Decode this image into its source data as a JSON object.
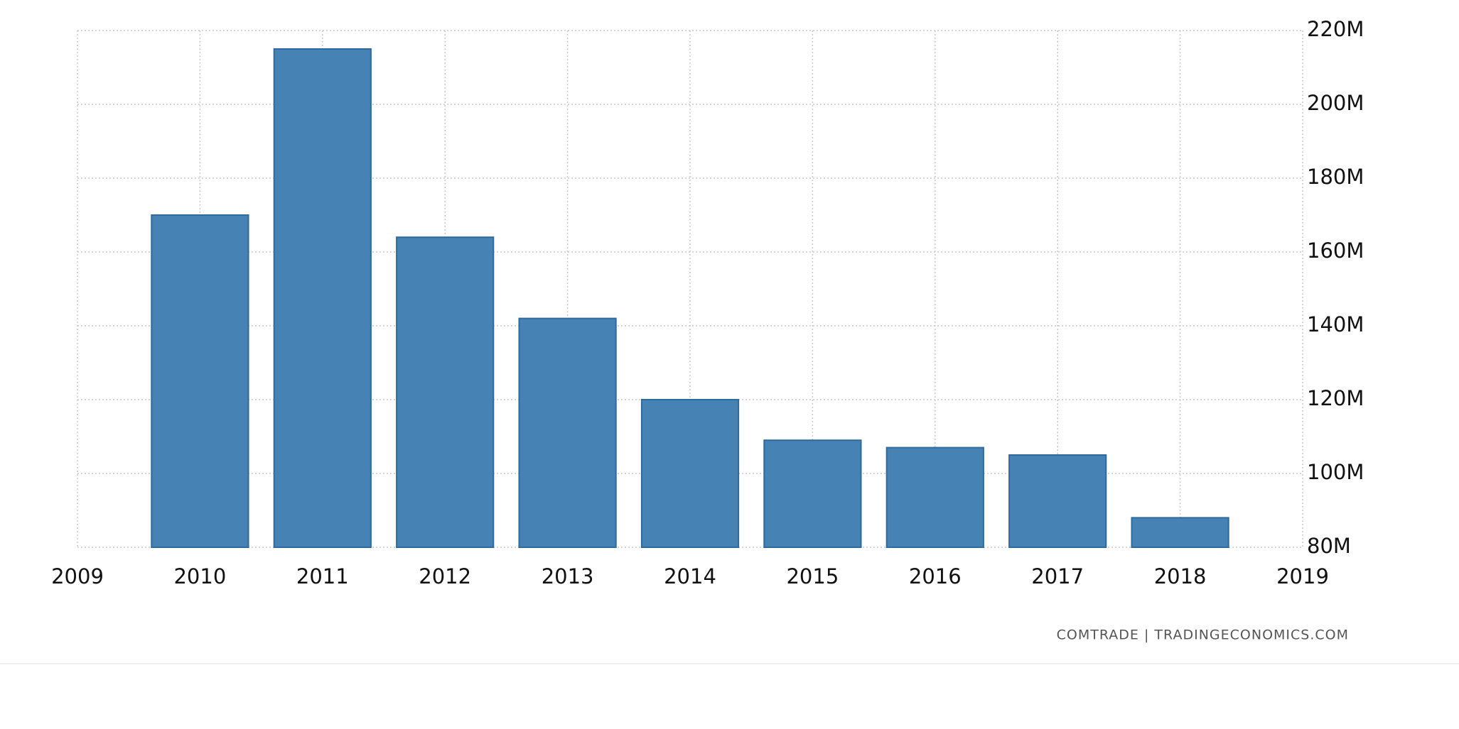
{
  "chart_data": {
    "type": "bar",
    "x": [
      2010,
      2011,
      2012,
      2013,
      2014,
      2015,
      2016,
      2017,
      2018
    ],
    "values": [
      170,
      215,
      164,
      142,
      120,
      109,
      107,
      105,
      88
    ],
    "color": "#4682b4",
    "xlim": [
      2009,
      2019
    ],
    "xticks": [
      2009,
      2010,
      2011,
      2012,
      2013,
      2014,
      2015,
      2016,
      2017,
      2018,
      2019
    ],
    "ylim": [
      80,
      220
    ],
    "yticks": [
      {
        "value": 80,
        "label": "80M"
      },
      {
        "value": 100,
        "label": "100M"
      },
      {
        "value": 120,
        "label": "120M"
      },
      {
        "value": 140,
        "label": "140M"
      },
      {
        "value": 160,
        "label": "160M"
      },
      {
        "value": 180,
        "label": "180M"
      },
      {
        "value": 200,
        "label": "200M"
      },
      {
        "value": 220,
        "label": "220M"
      }
    ],
    "grid": true,
    "source": "COMTRADE | TRADINGECONOMICS.COM"
  }
}
